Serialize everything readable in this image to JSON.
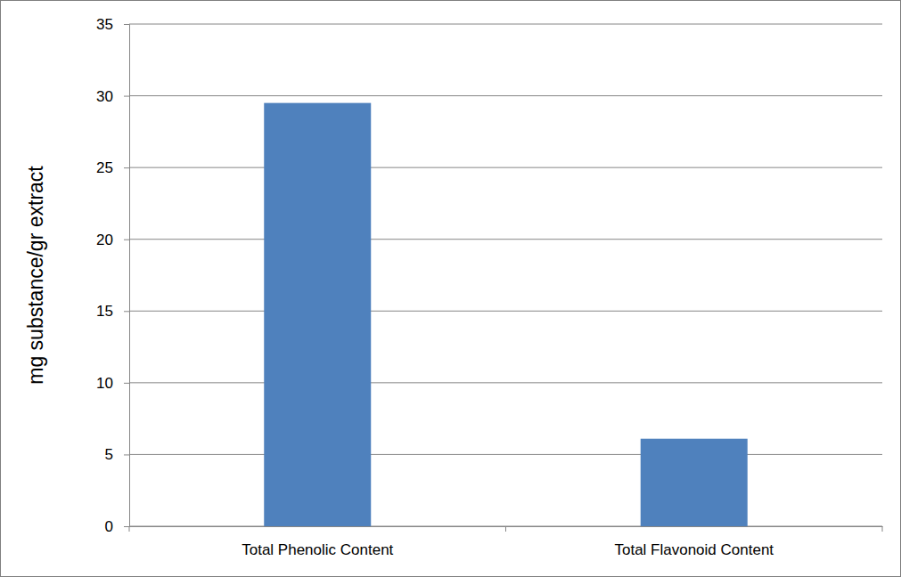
{
  "chart_data": {
    "type": "bar",
    "ylabel": "mg substance/gr extract",
    "categories": [
      "Total Phenolic Content",
      "Total Flavonoid Content"
    ],
    "values": [
      29.5,
      6.1
    ],
    "color": "#4f81bd",
    "ylim": [
      0,
      35
    ],
    "yticks": [
      0,
      5,
      10,
      15,
      20,
      25,
      30,
      35
    ],
    "grid": true
  }
}
